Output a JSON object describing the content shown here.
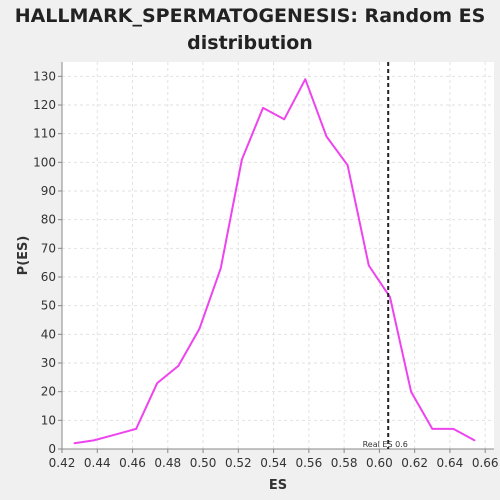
{
  "chart_data": {
    "type": "line",
    "title_line1": "HALLMARK_SPERMATOGENESIS: Random ES",
    "title_line2": "distribution",
    "xlabel": "ES",
    "ylabel": "P(ES)",
    "xlim": [
      0.42,
      0.665
    ],
    "ylim": [
      0,
      135
    ],
    "xticks": [
      "0.42",
      "0.44",
      "0.46",
      "0.48",
      "0.50",
      "0.52",
      "0.54",
      "0.56",
      "0.58",
      "0.60",
      "0.62",
      "0.64",
      "0.66"
    ],
    "yticks": [
      "0",
      "10",
      "20",
      "30",
      "40",
      "50",
      "60",
      "70",
      "80",
      "90",
      "100",
      "110",
      "120",
      "130"
    ],
    "grid": true,
    "series": [
      {
        "color": "#ee44ee",
        "x": [
          0.427,
          0.438,
          0.45,
          0.462,
          0.474,
          0.486,
          0.498,
          0.51,
          0.522,
          0.534,
          0.546,
          0.558,
          0.57,
          0.582,
          0.594,
          0.606,
          0.618,
          0.63,
          0.642,
          0.654
        ],
        "y": [
          2,
          3,
          5,
          7,
          23,
          29,
          42,
          63,
          101,
          119,
          115,
          129,
          109,
          99,
          64,
          53,
          20,
          7,
          7,
          3
        ]
      }
    ],
    "marker_line": {
      "x": 0.605,
      "color": "#222222",
      "label": "Real ES 0.6"
    }
  }
}
